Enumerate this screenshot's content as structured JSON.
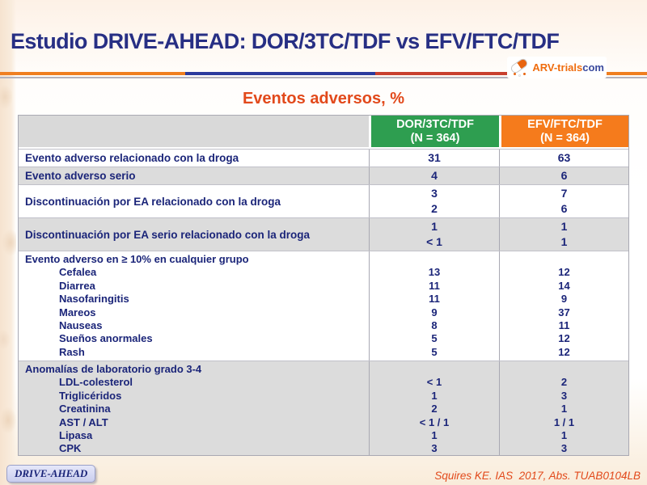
{
  "slide": {
    "title": "Estudio DRIVE-AHEAD: DOR/3TC/TDF vs EFV/FTC/TDF",
    "subtitle": "Eventos adversos, %",
    "badge": "DRIVE-AHEAD",
    "reference": "Squires KE. IAS  2017, Abs. TUAB0104LB"
  },
  "logo": {
    "brand": "ARV-trials",
    "tld": "com",
    "icon": "pill-capsule-icon"
  },
  "colors": {
    "title_navy": "#272f84",
    "accent_red_orange": "#e2491b",
    "dor_header_green": "#2e9e50",
    "efv_header_orange": "#f57b1c",
    "shaded_row_gray": "#dcdcdc",
    "table_text_navy": "#1b2579",
    "divider_orange": "#ef7f21",
    "divider_blue": "#2b3a9d",
    "divider_red": "#c8402f"
  },
  "table": {
    "columns": [
      {
        "label": "DOR/3TC/TDF",
        "sublabel": "(N = 364)"
      },
      {
        "label": "EFV/FTC/TDF",
        "sublabel": "(N = 364)"
      }
    ],
    "rows": [
      {
        "label": "Evento adverso relacionado con la droga",
        "dor": [
          "31"
        ],
        "efv": [
          "63"
        ]
      },
      {
        "label": "Evento adverso serio",
        "dor": [
          "4"
        ],
        "efv": [
          "6"
        ]
      },
      {
        "label": "Discontinuación por EA relacionado con la droga",
        "dor": [
          "3",
          "2"
        ],
        "efv": [
          "7",
          "6"
        ]
      },
      {
        "label": "Discontinuación por EA serio relacionado con la droga",
        "dor": [
          "1",
          "< 1"
        ],
        "efv": [
          "1",
          "1"
        ]
      },
      {
        "group": "Evento adverso en ≥ 10% en cualquier grupo",
        "items": [
          "Cefalea",
          "Diarrea",
          "Nasofaringitis",
          "Mareos",
          "Nauseas",
          "Sueños anormales",
          "Rash"
        ],
        "dor": [
          "13",
          "11",
          "11",
          "9",
          "8",
          "5",
          "5"
        ],
        "efv": [
          "12",
          "14",
          "9",
          "37",
          "11",
          "12",
          "12"
        ]
      },
      {
        "group": "Anomalías de laboratorio grado 3-4",
        "items": [
          "LDL-colesterol",
          "Triglicéridos",
          "Creatinina",
          "AST / ALT",
          "Lipasa",
          "CPK"
        ],
        "dor": [
          "< 1",
          "1",
          "2",
          "< 1 / 1",
          "1",
          "3"
        ],
        "efv": [
          "2",
          "3",
          "1",
          "1 / 1",
          "1",
          "3"
        ]
      }
    ]
  }
}
